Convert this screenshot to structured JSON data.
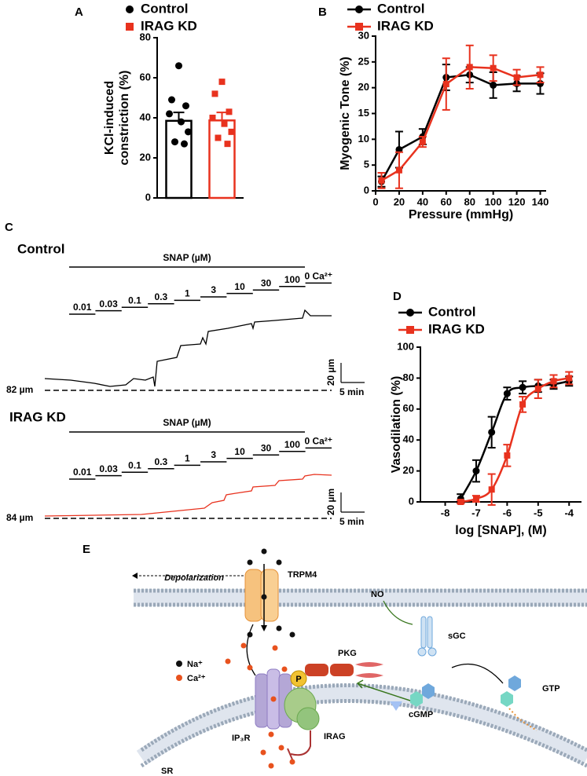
{
  "chart_data": [
    {
      "type": "bar",
      "ylabel": [
        "KCl-induced",
        "constriction (%)"
      ],
      "ylim": [
        0,
        80
      ],
      "yticks": [
        0,
        20,
        40,
        60,
        80
      ],
      "series": [
        {
          "name": "Control",
          "color": "#000000",
          "marker": "circle",
          "values": [
            38.5
          ],
          "errors": [
            4.2
          ],
          "points": [
            66,
            49,
            46,
            42,
            38,
            33,
            28,
            27
          ]
        },
        {
          "name": "IRAG KD",
          "color": "#e8321e",
          "marker": "square",
          "values": [
            38.7
          ],
          "errors": [
            4.0
          ],
          "points": [
            58,
            52,
            43,
            40,
            37,
            33,
            30,
            27
          ]
        }
      ]
    },
    {
      "type": "line",
      "xlabel": "Pressure (mmHg)",
      "ylabel": "Myogenic Tone (%)",
      "x": [
        5,
        20,
        40,
        60,
        80,
        100,
        120,
        140
      ],
      "xlim": [
        0,
        145
      ],
      "xticks": [
        0,
        20,
        40,
        60,
        80,
        100,
        120,
        140
      ],
      "ylim": [
        0,
        30
      ],
      "yticks": [
        0,
        5,
        10,
        15,
        20,
        25,
        30
      ],
      "series": [
        {
          "name": "Control",
          "color": "#000000",
          "marker": "circle",
          "values": [
            1.8,
            8,
            10.5,
            22,
            22.5,
            20.5,
            20.8,
            20.8
          ],
          "errors": [
            1,
            3.5,
            1.5,
            2.5,
            1.5,
            2.5,
            1.5,
            2
          ]
        },
        {
          "name": "IRAG KD",
          "color": "#e8321e",
          "marker": "square",
          "values": [
            2,
            4,
            9.5,
            20.7,
            24,
            23.8,
            22,
            22.5
          ],
          "errors": [
            1.5,
            3.5,
            1,
            5,
            4.2,
            2.5,
            1.5,
            1.5
          ]
        }
      ]
    },
    {
      "type": "line",
      "fit": true,
      "xlabel": "log [SNAP], (M)",
      "ylabel": "Vasodilation (%)",
      "x": [
        -7.5,
        -7,
        -6.5,
        -6,
        -5.5,
        -5,
        -4.5,
        -4
      ],
      "xlim": [
        -8.8,
        -3.6
      ],
      "xticks": [
        -8,
        -7,
        -6,
        -5,
        -4
      ],
      "ylim": [
        0,
        100
      ],
      "yticks": [
        0,
        20,
        40,
        60,
        80,
        100
      ],
      "series": [
        {
          "name": "Control",
          "color": "#000000",
          "marker": "circle",
          "values": [
            2,
            20,
            45,
            70,
            74,
            75,
            76,
            78
          ],
          "errors": [
            3,
            7,
            10,
            4,
            4,
            4,
            3,
            3
          ]
        },
        {
          "name": "IRAG KD",
          "color": "#e8321e",
          "marker": "square",
          "values": [
            0,
            2,
            8,
            30,
            63,
            73,
            78,
            80
          ],
          "errors": [
            1,
            2,
            10,
            7,
            5,
            6,
            4,
            4
          ]
        }
      ]
    }
  ],
  "panel_labels": [
    "A",
    "B",
    "C",
    "D",
    "E"
  ],
  "traces": {
    "sweeps": [
      {
        "title": "Control",
        "color": "#000000",
        "baseline": "82 µm"
      },
      {
        "title": "IRAG KD",
        "color": "#e8321e",
        "baseline": "84 µm"
      }
    ],
    "drug": "SNAP (µM)",
    "concentrations": [
      "0.01",
      "0.03",
      "0.1",
      "0.3",
      "1",
      "3",
      "10",
      "30",
      "100",
      "0 Ca²⁺"
    ],
    "scale_y": "20 µm",
    "scale_x": "5 min"
  },
  "diagram": {
    "labels": {
      "depolarization": "Depolarization",
      "trpm4": "TRPM4",
      "no": "NO",
      "sgc": "sGC",
      "na": "Na⁺",
      "ca": "Ca²⁺",
      "pkg": "PKG",
      "p": "P",
      "gtp": "GTP",
      "cgmp": "cGMP",
      "ip3r": "IP₃R",
      "irag": "IRAG",
      "sr": "SR"
    }
  }
}
